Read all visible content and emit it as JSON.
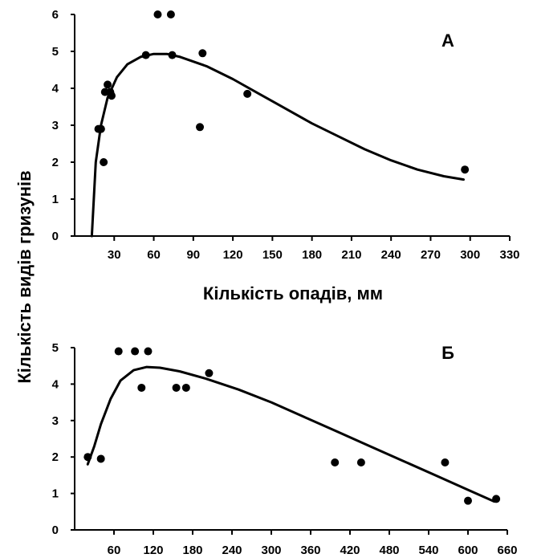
{
  "figure": {
    "ylabel": "Кількість видів гризунів",
    "xlabel": "Кількість опадів, мм"
  },
  "chart_data": [
    {
      "type": "scatter",
      "panel_label": "А",
      "xlabel": "Кількість опадів, мм",
      "ylabel": "Кількість видів гризунів",
      "xlim": [
        0,
        330
      ],
      "ylim": [
        0,
        6
      ],
      "x_ticks": [
        30,
        60,
        90,
        120,
        150,
        180,
        210,
        240,
        270,
        300,
        330
      ],
      "y_ticks": [
        0,
        1,
        2,
        3,
        4,
        5,
        6
      ],
      "grid": false,
      "points": [
        {
          "x": 18,
          "y": 2.9
        },
        {
          "x": 20,
          "y": 2.9
        },
        {
          "x": 22,
          "y": 2.0
        },
        {
          "x": 23,
          "y": 3.9
        },
        {
          "x": 25,
          "y": 4.1
        },
        {
          "x": 27,
          "y": 3.9
        },
        {
          "x": 28,
          "y": 3.8
        },
        {
          "x": 54,
          "y": 4.9
        },
        {
          "x": 63,
          "y": 6.0
        },
        {
          "x": 73,
          "y": 6.0
        },
        {
          "x": 74,
          "y": 4.9
        },
        {
          "x": 95,
          "y": 2.95
        },
        {
          "x": 97,
          "y": 4.95
        },
        {
          "x": 131,
          "y": 3.85
        },
        {
          "x": 296,
          "y": 1.8
        }
      ],
      "trend": [
        {
          "x": 13,
          "y": 0
        },
        {
          "x": 16,
          "y": 2.0
        },
        {
          "x": 20,
          "y": 3.0
        },
        {
          "x": 25,
          "y": 3.75
        },
        {
          "x": 32,
          "y": 4.3
        },
        {
          "x": 40,
          "y": 4.65
        },
        {
          "x": 50,
          "y": 4.85
        },
        {
          "x": 60,
          "y": 4.93
        },
        {
          "x": 70,
          "y": 4.93
        },
        {
          "x": 80,
          "y": 4.85
        },
        {
          "x": 100,
          "y": 4.6
        },
        {
          "x": 120,
          "y": 4.25
        },
        {
          "x": 140,
          "y": 3.85
        },
        {
          "x": 160,
          "y": 3.45
        },
        {
          "x": 180,
          "y": 3.05
        },
        {
          "x": 200,
          "y": 2.7
        },
        {
          "x": 220,
          "y": 2.35
        },
        {
          "x": 240,
          "y": 2.05
        },
        {
          "x": 260,
          "y": 1.8
        },
        {
          "x": 280,
          "y": 1.62
        },
        {
          "x": 295,
          "y": 1.53
        }
      ]
    },
    {
      "type": "scatter",
      "panel_label": "Б",
      "xlabel": "",
      "ylabel": "Кількість видів гризунів",
      "xlim": [
        0,
        660
      ],
      "ylim": [
        0,
        5
      ],
      "x_ticks": [
        60,
        120,
        180,
        240,
        300,
        360,
        420,
        480,
        540,
        600,
        660
      ],
      "y_ticks": [
        0,
        1,
        2,
        3,
        4,
        5
      ],
      "grid": false,
      "points": [
        {
          "x": 20,
          "y": 2.0
        },
        {
          "x": 40,
          "y": 1.95
        },
        {
          "x": 67,
          "y": 4.9
        },
        {
          "x": 92,
          "y": 4.9
        },
        {
          "x": 102,
          "y": 3.9
        },
        {
          "x": 112,
          "y": 4.9
        },
        {
          "x": 155,
          "y": 3.9
        },
        {
          "x": 170,
          "y": 3.9
        },
        {
          "x": 205,
          "y": 4.3
        },
        {
          "x": 397,
          "y": 1.85
        },
        {
          "x": 437,
          "y": 1.85
        },
        {
          "x": 565,
          "y": 1.85
        },
        {
          "x": 600,
          "y": 0.8
        },
        {
          "x": 643,
          "y": 0.85
        }
      ],
      "trend": [
        {
          "x": 20,
          "y": 1.8
        },
        {
          "x": 30,
          "y": 2.3
        },
        {
          "x": 40,
          "y": 2.9
        },
        {
          "x": 55,
          "y": 3.6
        },
        {
          "x": 70,
          "y": 4.1
        },
        {
          "x": 90,
          "y": 4.38
        },
        {
          "x": 110,
          "y": 4.47
        },
        {
          "x": 130,
          "y": 4.45
        },
        {
          "x": 160,
          "y": 4.35
        },
        {
          "x": 200,
          "y": 4.15
        },
        {
          "x": 250,
          "y": 3.85
        },
        {
          "x": 300,
          "y": 3.5
        },
        {
          "x": 350,
          "y": 3.1
        },
        {
          "x": 400,
          "y": 2.7
        },
        {
          "x": 450,
          "y": 2.3
        },
        {
          "x": 500,
          "y": 1.9
        },
        {
          "x": 550,
          "y": 1.5
        },
        {
          "x": 600,
          "y": 1.1
        },
        {
          "x": 640,
          "y": 0.78
        }
      ]
    }
  ]
}
